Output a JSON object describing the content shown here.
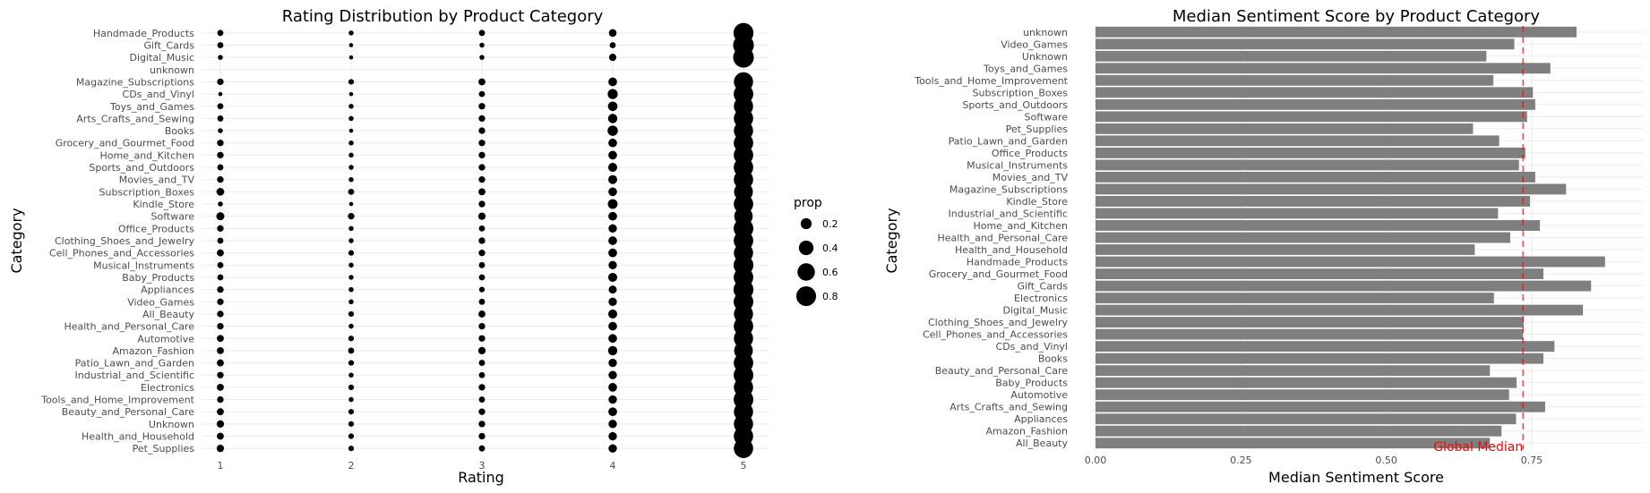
{
  "chart_data": [
    {
      "type": "scatter",
      "title": "Rating Distribution by Product Category",
      "xlabel": "Rating",
      "ylabel": "Category",
      "x_ticks": [
        "1",
        "2",
        "3",
        "4",
        "5"
      ],
      "xlim": [
        1,
        5
      ],
      "grid": true,
      "size_legend": {
        "title": "prop",
        "placement": "right",
        "entries": [
          {
            "label": "0.2",
            "value": 0.2
          },
          {
            "label": "0.4",
            "value": 0.4
          },
          {
            "label": "0.6",
            "value": 0.6
          },
          {
            "label": "0.8",
            "value": 0.8
          }
        ]
      },
      "categories": [
        "Handmade_Products",
        "Gift_Cards",
        "Digital_Music",
        "unknown",
        "Magazine_Subscriptions",
        "CDs_and_Vinyl",
        "Toys_and_Games",
        "Arts_Crafts_and_Sewing",
        "Books",
        "Grocery_and_Gourmet_Food",
        "Home_and_Kitchen",
        "Sports_and_Outdoors",
        "Movies_and_TV",
        "Subscription_Boxes",
        "Kindle_Store",
        "Software",
        "Office_Products",
        "Clothing_Shoes_and_Jewelry",
        "Cell_Phones_and_Accessories",
        "Musical_Instruments",
        "Baby_Products",
        "Appliances",
        "Video_Games",
        "All_Beauty",
        "Health_and_Personal_Care",
        "Automotive",
        "Amazon_Fashion",
        "Patio_Lawn_and_Garden",
        "Industrial_and_Scientific",
        "Electronics",
        "Tools_and_Home_Improvement",
        "Beauty_and_Personal_Care",
        "Unknown",
        "Health_and_Household",
        "Pet_Supplies"
      ],
      "proportions": [
        [
          0.04,
          0.02,
          0.04,
          0.08,
          0.82
        ],
        [
          0.04,
          0.01,
          0.02,
          0.04,
          0.89
        ],
        [
          0.02,
          0.01,
          0.02,
          0.07,
          0.88
        ],
        [
          0,
          0,
          0,
          0,
          0
        ],
        [
          0.05,
          0.03,
          0.06,
          0.11,
          0.75
        ],
        [
          0.01,
          0.01,
          0.04,
          0.16,
          0.78
        ],
        [
          0.04,
          0.02,
          0.05,
          0.14,
          0.75
        ],
        [
          0.04,
          0.02,
          0.05,
          0.13,
          0.76
        ],
        [
          0.02,
          0.01,
          0.05,
          0.17,
          0.75
        ],
        [
          0.05,
          0.02,
          0.05,
          0.11,
          0.77
        ],
        [
          0.05,
          0.02,
          0.05,
          0.11,
          0.77
        ],
        [
          0.04,
          0.02,
          0.05,
          0.12,
          0.77
        ],
        [
          0.05,
          0.02,
          0.05,
          0.12,
          0.76
        ],
        [
          0.08,
          0.04,
          0.06,
          0.11,
          0.71
        ],
        [
          0.02,
          0.01,
          0.05,
          0.15,
          0.77
        ],
        [
          0.09,
          0.05,
          0.07,
          0.11,
          0.68
        ],
        [
          0.05,
          0.02,
          0.04,
          0.1,
          0.79
        ],
        [
          0.04,
          0.02,
          0.05,
          0.11,
          0.78
        ],
        [
          0.06,
          0.03,
          0.05,
          0.11,
          0.75
        ],
        [
          0.04,
          0.02,
          0.04,
          0.1,
          0.8
        ],
        [
          0.04,
          0.02,
          0.04,
          0.12,
          0.78
        ],
        [
          0.05,
          0.02,
          0.03,
          0.09,
          0.81
        ],
        [
          0.05,
          0.02,
          0.04,
          0.1,
          0.79
        ],
        [
          0.05,
          0.03,
          0.06,
          0.12,
          0.74
        ],
        [
          0.05,
          0.02,
          0.05,
          0.11,
          0.77
        ],
        [
          0.06,
          0.03,
          0.05,
          0.11,
          0.75
        ],
        [
          0.06,
          0.04,
          0.07,
          0.13,
          0.7
        ],
        [
          0.06,
          0.03,
          0.04,
          0.1,
          0.77
        ],
        [
          0.05,
          0.02,
          0.04,
          0.1,
          0.79
        ],
        [
          0.06,
          0.03,
          0.05,
          0.11,
          0.75
        ],
        [
          0.05,
          0.02,
          0.04,
          0.1,
          0.79
        ],
        [
          0.06,
          0.03,
          0.05,
          0.11,
          0.75
        ],
        [
          0.07,
          0.03,
          0.05,
          0.1,
          0.75
        ],
        [
          0.06,
          0.03,
          0.05,
          0.1,
          0.76
        ],
        [
          0.07,
          0.03,
          0.04,
          0.1,
          0.76
        ]
      ]
    },
    {
      "type": "bar",
      "orientation": "horizontal",
      "title": "Median Sentiment Score by Product Category",
      "xlabel": "Median Sentiment Score",
      "ylabel": "Category",
      "xlim": [
        0,
        0.9
      ],
      "x_ticks": [
        0,
        0.25,
        0.5,
        0.75
      ],
      "x_tick_labels": [
        "0.00",
        "0.25",
        "0.50",
        "0.75"
      ],
      "grid": true,
      "bar_color": "#7f7f7f",
      "categories": [
        "unknown",
        "Video_Games",
        "Unknown",
        "Toys_and_Games",
        "Tools_and_Home_Improvement",
        "Subscription_Boxes",
        "Sports_and_Outdoors",
        "Software",
        "Pet_Supplies",
        "Patio_Lawn_and_Garden",
        "Office_Products",
        "Musical_Instruments",
        "Movies_and_TV",
        "Magazine_Subscriptions",
        "Kindle_Store",
        "Industrial_and_Scientific",
        "Home_and_Kitchen",
        "Health_and_Personal_Care",
        "Health_and_Household",
        "Handmade_Products",
        "Grocery_and_Gourmet_Food",
        "Gift_Cards",
        "Electronics",
        "Digital_Music",
        "Clothing_Shoes_and_Jewelry",
        "Cell_Phones_and_Accessories",
        "CDs_and_Vinyl",
        "Books",
        "Beauty_and_Personal_Care",
        "Baby_Products",
        "Automotive",
        "Arts_Crafts_and_Sewing",
        "Appliances",
        "Amazon_Fashion",
        "All_Beauty"
      ],
      "values": [
        0.827,
        0.72,
        0.672,
        0.782,
        0.684,
        0.752,
        0.756,
        0.742,
        0.649,
        0.694,
        0.739,
        0.728,
        0.756,
        0.809,
        0.747,
        0.692,
        0.764,
        0.713,
        0.652,
        0.876,
        0.77,
        0.852,
        0.685,
        0.838,
        0.736,
        0.735,
        0.789,
        0.77,
        0.678,
        0.724,
        0.711,
        0.773,
        0.723,
        0.698,
        0.678
      ],
      "reference_line": {
        "value": 0.735,
        "label": "Global Median",
        "color": "#ff0000"
      }
    }
  ]
}
